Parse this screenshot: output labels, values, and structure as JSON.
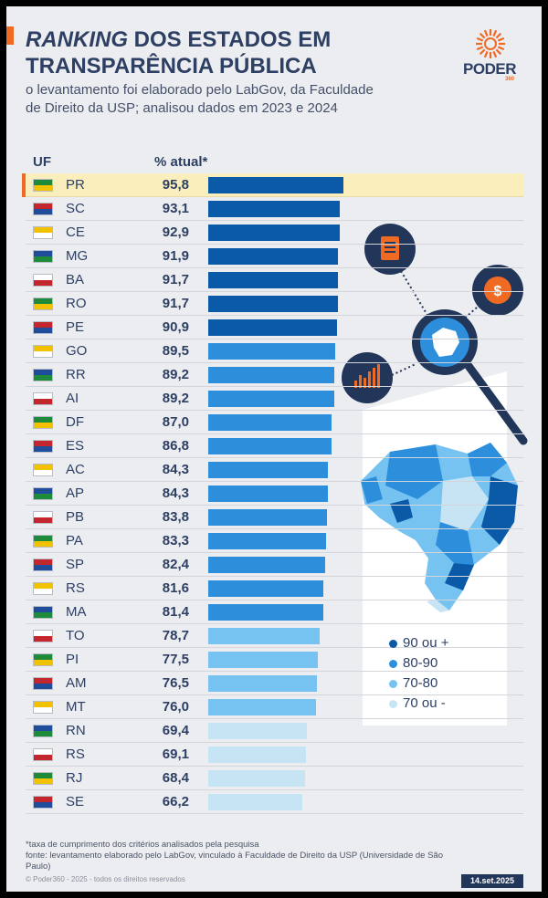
{
  "header": {
    "title_italic": "RANKING",
    "title_rest_1": " DOS ESTADOS EM",
    "title_line2": "TRANSPARÊNCIA PÚBLICA",
    "subtitle_line1": "o levantamento foi elaborado pelo LabGov, da Faculdade",
    "subtitle_line2": "de Direito da USP; analisou dados em 2023 e 2024"
  },
  "logo": {
    "name": "PODER",
    "sub": "360"
  },
  "table": {
    "col_uf": "UF",
    "col_value": "% atual*"
  },
  "chart_data": {
    "type": "bar",
    "orientation": "horizontal",
    "title": "RANKING DOS ESTADOS EM TRANSPARÊNCIA PÚBLICA",
    "xlabel": "% atual*",
    "ylabel": "UF",
    "xlim": [
      0,
      100
    ],
    "highlight": "PR",
    "categories": [
      "PR",
      "SC",
      "CE",
      "MG",
      "BA",
      "RO",
      "PE",
      "GO",
      "RR",
      "AI",
      "DF",
      "ES",
      "AC",
      "AP",
      "PB",
      "PA",
      "SP",
      "RS",
      "MA",
      "TO",
      "PI",
      "AM",
      "MT",
      "RN",
      "RS",
      "RJ",
      "SE"
    ],
    "labels": [
      "95,8",
      "93,1",
      "92,9",
      "91,9",
      "91,7",
      "91,7",
      "90,9",
      "89,5",
      "89,2",
      "89,2",
      "87,0",
      "86,8",
      "84,3",
      "84,3",
      "83,8",
      "83,3",
      "82,4",
      "81,6",
      "81,4",
      "78,7",
      "77,5",
      "76,5",
      "76,0",
      "69,4",
      "69,1",
      "68,4",
      "66,2"
    ],
    "values": [
      95.8,
      93.1,
      92.9,
      91.9,
      91.7,
      91.7,
      90.9,
      89.5,
      89.2,
      89.2,
      87.0,
      86.8,
      84.3,
      84.3,
      83.8,
      83.3,
      82.4,
      81.6,
      81.4,
      78.7,
      77.5,
      76.5,
      76.0,
      69.4,
      69.1,
      68.4,
      66.2
    ],
    "legend": [
      {
        "label": "90 ou +",
        "color": "#0b5aa8"
      },
      {
        "label": "80-90",
        "color": "#2d8fdc"
      },
      {
        "label": "70-80",
        "color": "#76c3f2"
      },
      {
        "label": "70 ou -",
        "color": "#c7e4f4"
      }
    ]
  },
  "footer": {
    "note": "*taxa de cumprimento dos critérios analisados pela pesquisa",
    "source_line1": "fonte: levantamento elaborado pelo LabGov, vinculado à Faculdade de Direito da USP (Universidade de São",
    "source_line2": "Paulo)",
    "copyright": "© Poder360 - 2025 - todos os direitos reservados",
    "date": "14.set.2025"
  },
  "colors": {
    "navy": "#2d3f63",
    "orange": "#ef6a23",
    "highlight": "#fbeebd"
  }
}
